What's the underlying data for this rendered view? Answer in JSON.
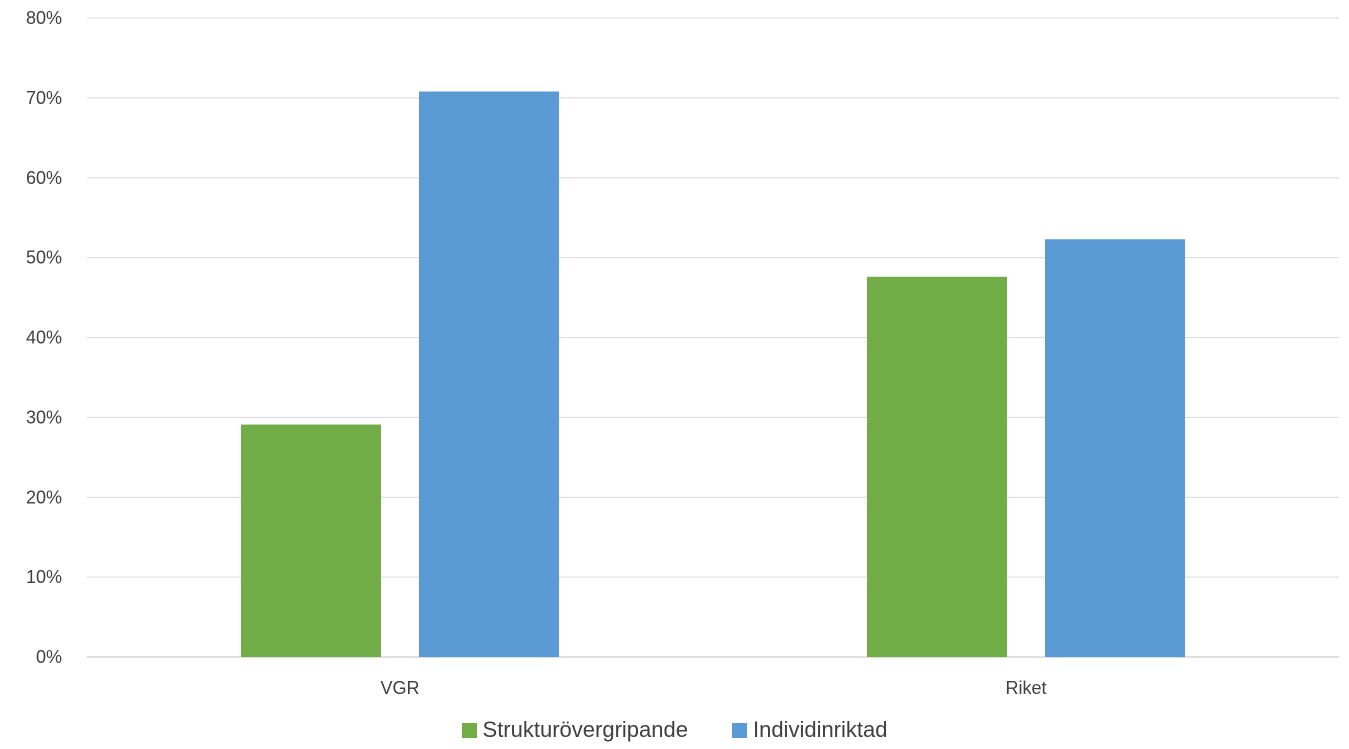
{
  "chart_data": {
    "type": "bar",
    "categories": [
      "VGR",
      "Riket"
    ],
    "series": [
      {
        "name": "Strukturövergripande",
        "color": "#70AD47",
        "values": [
          29.1,
          47.6
        ]
      },
      {
        "name": "Individinriktad",
        "color": "#5B9BD5",
        "values": [
          70.8,
          52.3
        ]
      }
    ],
    "ylim": [
      0,
      80
    ],
    "yticks": [
      0,
      10,
      20,
      30,
      40,
      50,
      60,
      70,
      80
    ],
    "ytick_suffix": "%",
    "grid": true,
    "legend_position": "bottom",
    "title": "",
    "xlabel": "",
    "ylabel": ""
  },
  "legend": {
    "items": [
      {
        "label": "Strukturövergripande",
        "color": "#70AD47"
      },
      {
        "label": "Individinriktad",
        "color": "#5B9BD5"
      }
    ]
  }
}
